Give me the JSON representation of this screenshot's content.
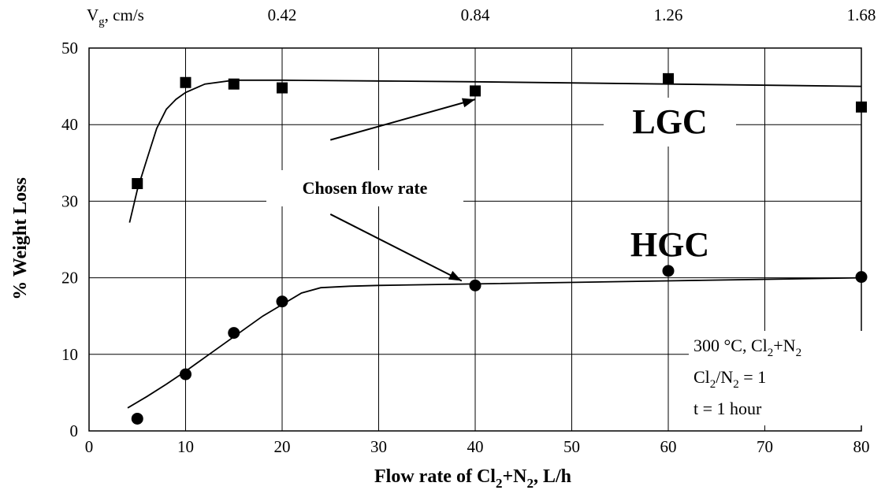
{
  "chart_data": {
    "type": "scatter",
    "xlabel": {
      "pre": "Flow rate of Cl",
      "sub1": "2",
      "mid": "+N",
      "sub2": "2",
      "post": ", L/h"
    },
    "ylabel": "% Weight Loss",
    "xlim": [
      0,
      80
    ],
    "ylim": [
      0,
      50
    ],
    "x_ticks": [
      0,
      10,
      20,
      30,
      40,
      50,
      60,
      70,
      80
    ],
    "y_ticks": [
      0,
      10,
      20,
      30,
      40,
      50
    ],
    "grid": true,
    "top_axis": {
      "label_main": "V",
      "label_sub": "g",
      "label_rest": ", cm/s",
      "ticks": [
        {
          "x": 20,
          "label": "0.42"
        },
        {
          "x": 40,
          "label": "0.84"
        },
        {
          "x": 60,
          "label": "1.26"
        },
        {
          "x": 80,
          "label": "1.68"
        }
      ]
    },
    "series": [
      {
        "name": "LGC",
        "marker": "square",
        "points": [
          [
            5,
            32.3
          ],
          [
            10,
            45.5
          ],
          [
            15,
            45.3
          ],
          [
            20,
            44.8
          ],
          [
            40,
            44.4
          ],
          [
            60,
            46.0
          ],
          [
            80,
            42.3
          ]
        ],
        "fit": [
          [
            4.2,
            27.2
          ],
          [
            5,
            31.5
          ],
          [
            6,
            35.5
          ],
          [
            7,
            39.5
          ],
          [
            8,
            42.0
          ],
          [
            9,
            43.3
          ],
          [
            10,
            44.2
          ],
          [
            12,
            45.3
          ],
          [
            15,
            45.8
          ],
          [
            20,
            45.8
          ],
          [
            30,
            45.7
          ],
          [
            40,
            45.6
          ],
          [
            60,
            45.3
          ],
          [
            80,
            45.0
          ]
        ]
      },
      {
        "name": "HGC",
        "marker": "circle",
        "points": [
          [
            5,
            1.6
          ],
          [
            10,
            7.4
          ],
          [
            15,
            12.8
          ],
          [
            20,
            16.9
          ],
          [
            40,
            19.0
          ],
          [
            60,
            20.9
          ],
          [
            80,
            20.1
          ]
        ],
        "fit": [
          [
            4,
            3.0
          ],
          [
            6,
            4.5
          ],
          [
            8,
            6.1
          ],
          [
            10,
            7.8
          ],
          [
            12,
            9.6
          ],
          [
            14,
            11.4
          ],
          [
            16,
            13.2
          ],
          [
            18,
            15.0
          ],
          [
            20,
            16.5
          ],
          [
            22,
            18.0
          ],
          [
            24,
            18.7
          ],
          [
            27,
            18.9
          ],
          [
            30,
            19.0
          ],
          [
            40,
            19.2
          ],
          [
            60,
            19.6
          ],
          [
            80,
            20.0
          ]
        ]
      }
    ],
    "annotation": {
      "text": "Chosen flow rate",
      "arrows": [
        {
          "from": [
            25,
            38.0
          ],
          "to": [
            40,
            43.3
          ]
        },
        {
          "from": [
            25,
            28.3
          ],
          "to": [
            38.6,
            19.6
          ]
        }
      ]
    },
    "conditions": {
      "line1_pre": "300 °C, Cl",
      "line1_sub1": "2",
      "line1_mid": "+N",
      "line1_sub2": "2",
      "line2_pre": "Cl",
      "line2_sub1": "2",
      "line2_mid": "/N",
      "line2_sub2": "2",
      "line2_post": " = 1",
      "line3": "t = 1 hour"
    }
  }
}
